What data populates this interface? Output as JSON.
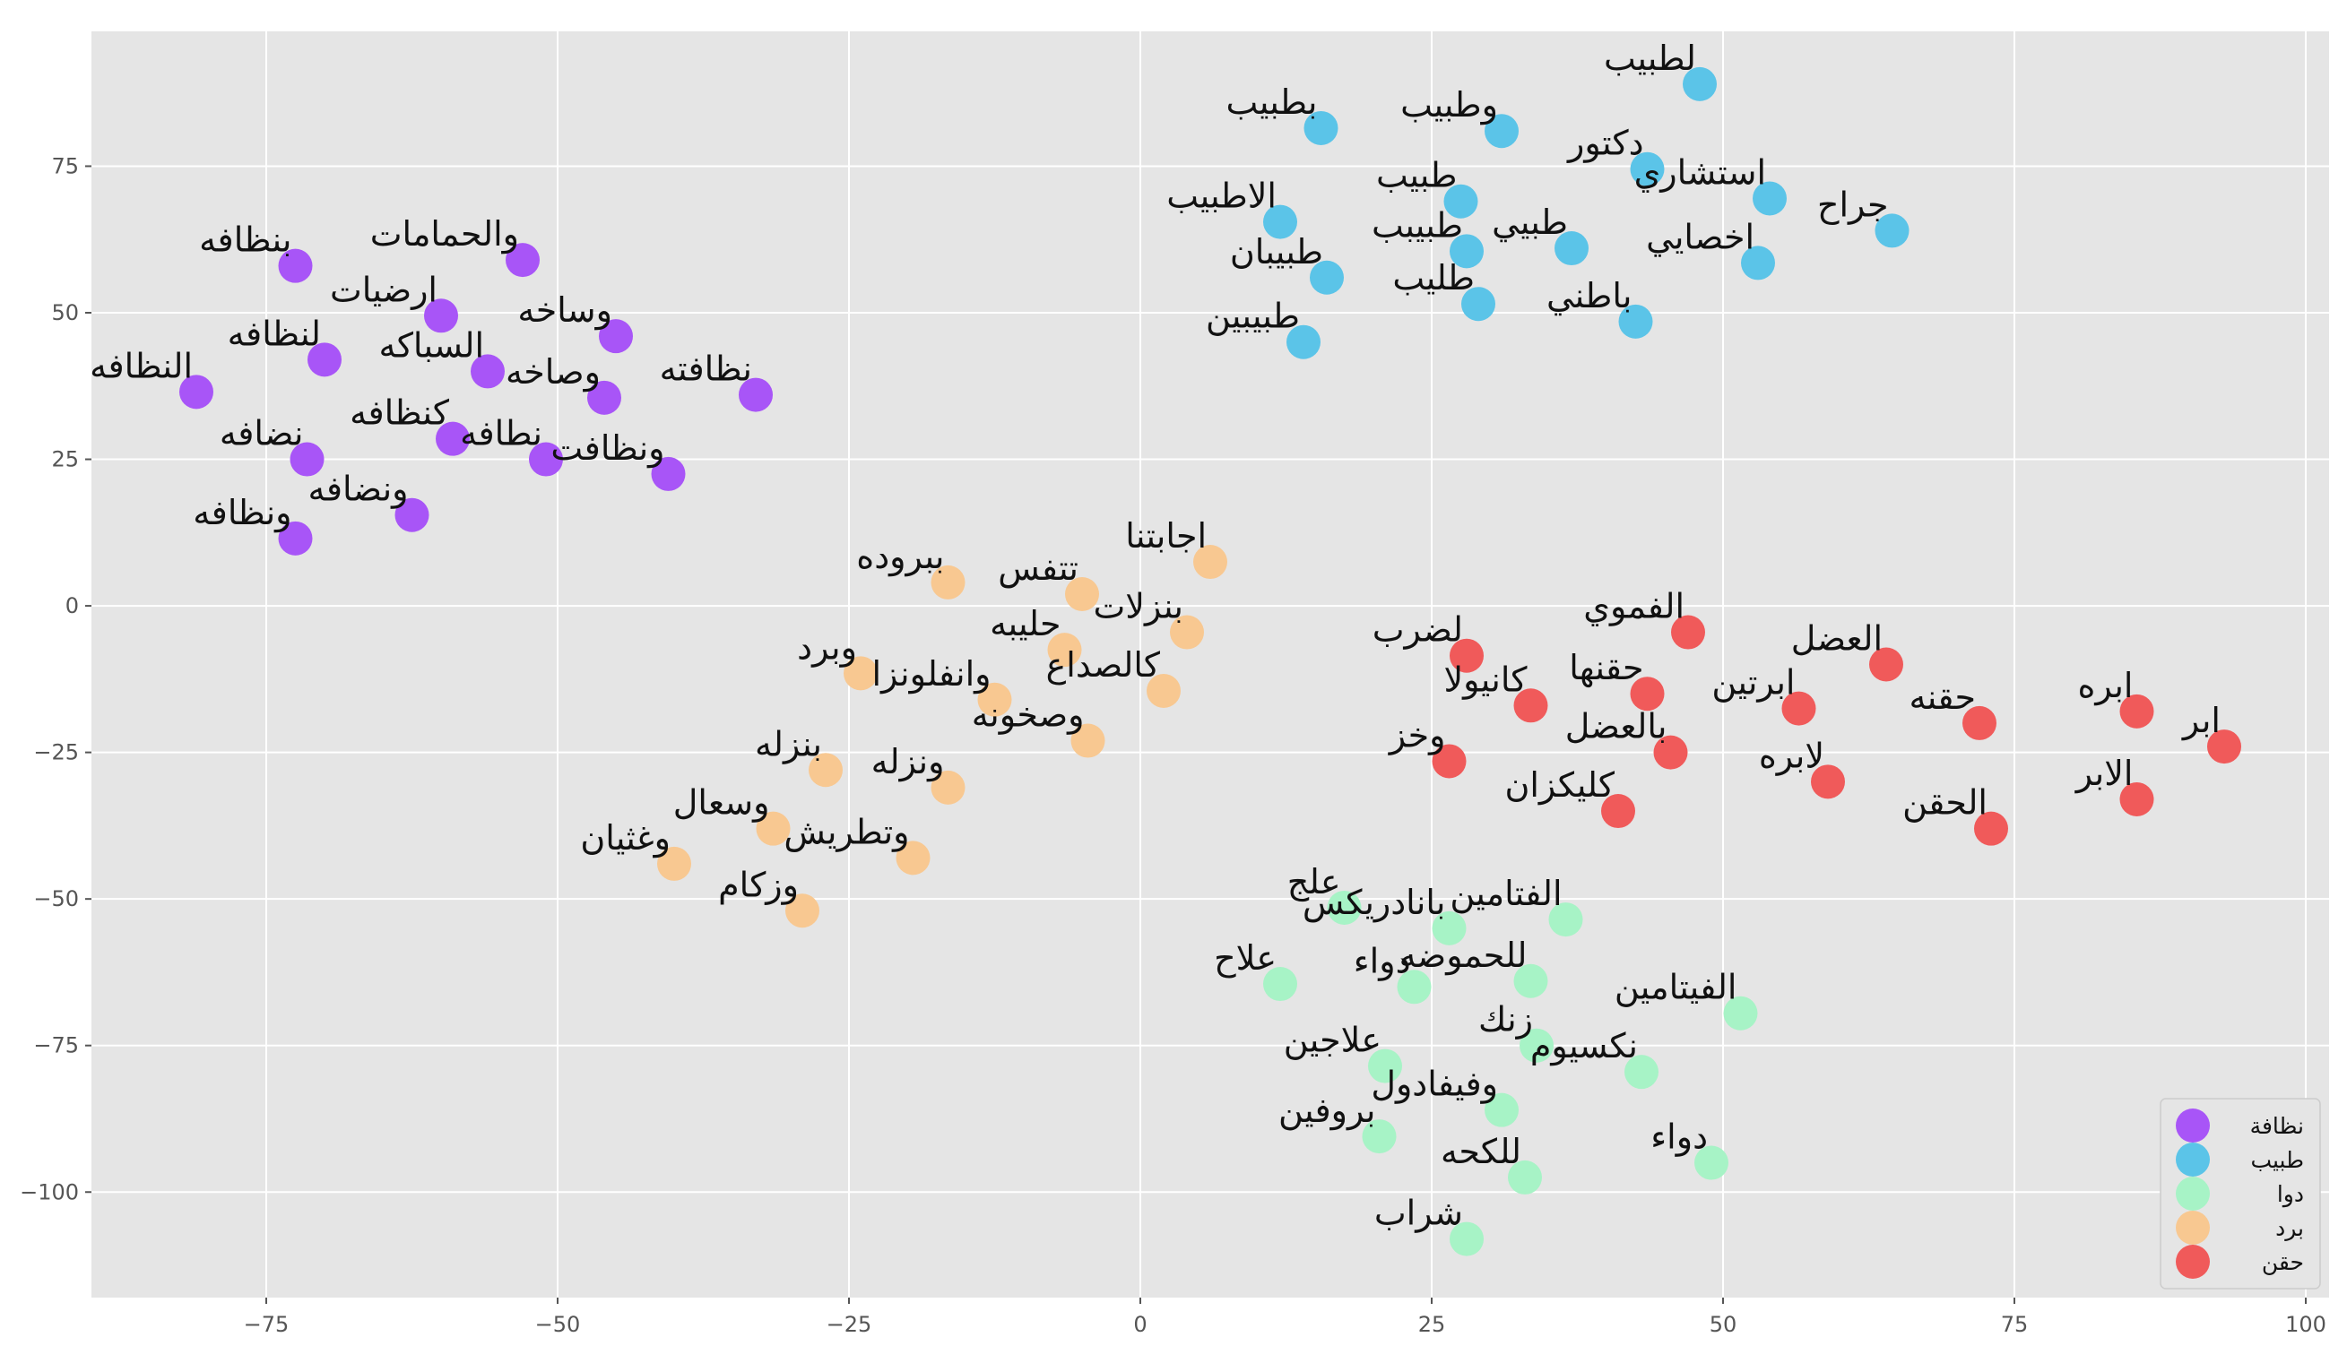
{
  "chart_data": {
    "type": "scatter",
    "title": "",
    "xlabel": "",
    "ylabel": "",
    "xlim": [
      -90,
      102
    ],
    "ylim": [
      -118,
      98
    ],
    "xticks": [
      -75,
      -50,
      -25,
      0,
      25,
      50,
      75,
      100
    ],
    "yticks": [
      75,
      50,
      25,
      0,
      -25,
      -50,
      -75,
      -100
    ],
    "grid": true,
    "legend_position": "bottom-right",
    "series": [
      {
        "name": "نظافة",
        "color": "#a855f7",
        "points": [
          {
            "label": "بنظافه",
            "x": -72.5,
            "y": 58
          },
          {
            "label": "والحمامات",
            "x": -53,
            "y": 59
          },
          {
            "label": "ارضيات",
            "x": -60,
            "y": 49.5
          },
          {
            "label": "وساخه",
            "x": -45,
            "y": 46
          },
          {
            "label": "لنظافه",
            "x": -70,
            "y": 42
          },
          {
            "label": "السباكه",
            "x": -56,
            "y": 40
          },
          {
            "label": "النظافه",
            "x": -81,
            "y": 36.5
          },
          {
            "label": "وصاخه",
            "x": -46,
            "y": 35.5
          },
          {
            "label": "نظافته",
            "x": -33,
            "y": 36
          },
          {
            "label": "كنظافه",
            "x": -59,
            "y": 28.5
          },
          {
            "label": "نضافه",
            "x": -71.5,
            "y": 25
          },
          {
            "label": "نطافه",
            "x": -51,
            "y": 25
          },
          {
            "label": "ونظافت",
            "x": -40.5,
            "y": 22.5
          },
          {
            "label": "ونضافه",
            "x": -62.5,
            "y": 15.5
          },
          {
            "label": "ونظافه",
            "x": -72.5,
            "y": 11.5
          }
        ]
      },
      {
        "name": "طبيب",
        "color": "#5bc4e8",
        "points": [
          {
            "label": "لطبيب",
            "x": 48,
            "y": 89
          },
          {
            "label": "بطبيب",
            "x": 15.5,
            "y": 81.5
          },
          {
            "label": "وطبيب",
            "x": 31,
            "y": 81
          },
          {
            "label": "دكتور",
            "x": 43.5,
            "y": 74.5
          },
          {
            "label": "استشاري",
            "x": 54,
            "y": 69.5
          },
          {
            "label": "طبيب",
            "x": 27.5,
            "y": 69
          },
          {
            "label": "جراح",
            "x": 64.5,
            "y": 64
          },
          {
            "label": "الاطبيب",
            "x": 12,
            "y": 65.5
          },
          {
            "label": "طبيبب",
            "x": 28,
            "y": 60.5
          },
          {
            "label": "طبيي",
            "x": 37,
            "y": 61
          },
          {
            "label": "اخصايي",
            "x": 53,
            "y": 58.5
          },
          {
            "label": "طبيبان",
            "x": 16,
            "y": 56
          },
          {
            "label": "طليب",
            "x": 29,
            "y": 51.5
          },
          {
            "label": "باطني",
            "x": 42.5,
            "y": 48.5
          },
          {
            "label": "طبيبين",
            "x": 14,
            "y": 45
          }
        ]
      },
      {
        "name": "دوا",
        "color": "#a7f3c6",
        "points": [
          {
            "label": "علج",
            "x": 17.5,
            "y": -51.5
          },
          {
            "label": "بانادريكس",
            "x": 26.5,
            "y": -55
          },
          {
            "label": "الفتامين",
            "x": 36.5,
            "y": -53.5
          },
          {
            "label": "علاح",
            "x": 12,
            "y": -64.5
          },
          {
            "label": "دواء",
            "x": 23.5,
            "y": -65
          },
          {
            "label": "للحموضه",
            "x": 33.5,
            "y": -64
          },
          {
            "label": "الفيتامين",
            "x": 51.5,
            "y": -69.5
          },
          {
            "label": "زنك",
            "x": 34,
            "y": -75
          },
          {
            "label": "علاجين",
            "x": 21,
            "y": -78.5
          },
          {
            "label": "نكسيوم",
            "x": 43,
            "y": -79.5
          },
          {
            "label": "وفيفادول",
            "x": 31,
            "y": -86
          },
          {
            "label": "بروفين",
            "x": 20.5,
            "y": -90.5
          },
          {
            "label": "دواء",
            "x": 49,
            "y": -95
          },
          {
            "label": "للكحه",
            "x": 33,
            "y": -97.5
          },
          {
            "label": "شراب",
            "x": 28,
            "y": -108
          }
        ]
      },
      {
        "name": "برد",
        "color": "#f8c891",
        "points": [
          {
            "label": "اجابتنا",
            "x": 6,
            "y": 7.5
          },
          {
            "label": "ببروده",
            "x": -16.5,
            "y": 4
          },
          {
            "label": "تتفس",
            "x": -5,
            "y": 2
          },
          {
            "label": "بنزلات",
            "x": 4,
            "y": -4.5
          },
          {
            "label": "حليبه",
            "x": -6.5,
            "y": -7.5
          },
          {
            "label": "وبرد",
            "x": -24,
            "y": -11.5
          },
          {
            "label": "كالصداع",
            "x": 2,
            "y": -14.5
          },
          {
            "label": "وانفلونزا",
            "x": -12.5,
            "y": -16
          },
          {
            "label": "وصخونه",
            "x": -4.5,
            "y": -23
          },
          {
            "label": "بنزله",
            "x": -27,
            "y": -28
          },
          {
            "label": "ونزله",
            "x": -16.5,
            "y": -31
          },
          {
            "label": "وسعال",
            "x": -31.5,
            "y": -38
          },
          {
            "label": "وتطريش",
            "x": -19.5,
            "y": -43
          },
          {
            "label": "وغثيان",
            "x": -40,
            "y": -44
          },
          {
            "label": "وزكام",
            "x": -29,
            "y": -52
          }
        ]
      },
      {
        "name": "حقن",
        "color": "#f05a5a",
        "points": [
          {
            "label": "الفموي",
            "x": 47,
            "y": -4.5
          },
          {
            "label": "لضرب",
            "x": 28,
            "y": -8.5
          },
          {
            "label": "العضل",
            "x": 64,
            "y": -10
          },
          {
            "label": "حقنها",
            "x": 43.5,
            "y": -15
          },
          {
            "label": "كانيولا",
            "x": 33.5,
            "y": -17
          },
          {
            "label": "ابرتين",
            "x": 56.5,
            "y": -17.5
          },
          {
            "label": "ابره",
            "x": 85.5,
            "y": -18
          },
          {
            "label": "حقنه",
            "x": 72,
            "y": -20
          },
          {
            "label": "ابر",
            "x": 93,
            "y": -24
          },
          {
            "label": "بالعضل",
            "x": 45.5,
            "y": -25
          },
          {
            "label": "وخز",
            "x": 26.5,
            "y": -26.5
          },
          {
            "label": "لابره",
            "x": 59,
            "y": -30
          },
          {
            "label": "الابر",
            "x": 85.5,
            "y": -33
          },
          {
            "label": "كليكزان",
            "x": 41,
            "y": -35
          },
          {
            "label": "الحقن",
            "x": 73,
            "y": -38
          }
        ]
      }
    ]
  }
}
